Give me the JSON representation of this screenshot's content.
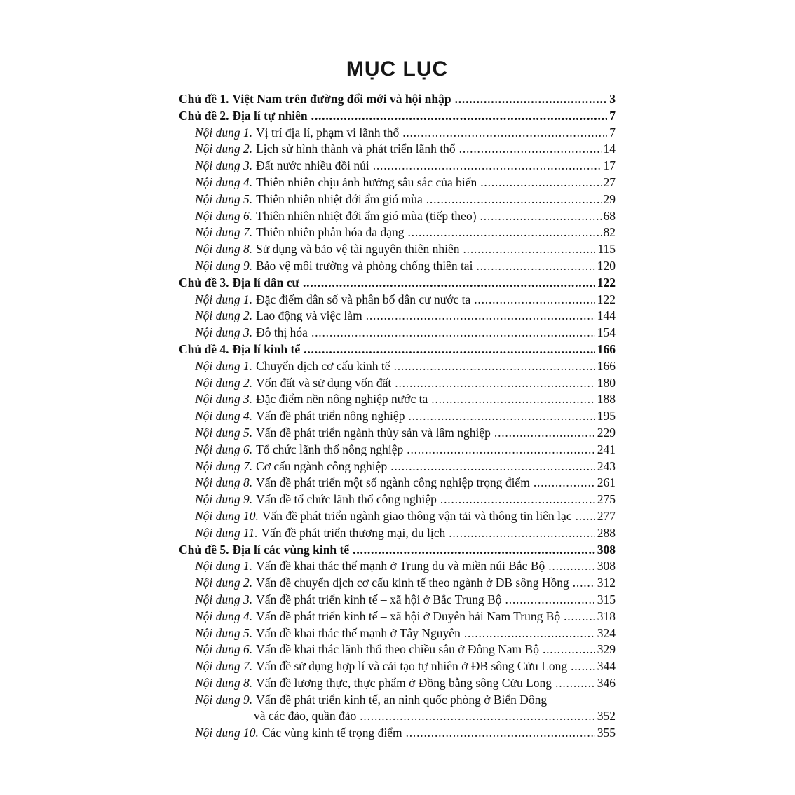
{
  "page": {
    "title": "MỤC LỤC"
  },
  "toc": {
    "entries": [
      {
        "level": "chapter",
        "prefix": "Chủ đề 1.",
        "title": "Việt Nam trên đường đổi mới và hội nhập",
        "page": "3"
      },
      {
        "level": "chapter",
        "prefix": "Chủ đề 2.",
        "title": "Địa lí tự nhiên",
        "page": "7"
      },
      {
        "level": "section",
        "prefix": "Nội dung 1.",
        "title": "Vị trí địa lí, phạm vi lãnh thổ",
        "page": "7"
      },
      {
        "level": "section",
        "prefix": "Nội dung 2.",
        "title": "Lịch sử hình thành và phát triển lãnh thổ",
        "page": "14"
      },
      {
        "level": "section",
        "prefix": "Nội dung 3.",
        "title": "Đất nước nhiều đồi núi",
        "page": "17"
      },
      {
        "level": "section",
        "prefix": "Nội dung 4.",
        "title": "Thiên nhiên chịu ảnh hưởng sâu sắc của biển",
        "page": "27"
      },
      {
        "level": "section",
        "prefix": "Nội dung 5.",
        "title": "Thiên nhiên nhiệt đới ẩm gió mùa",
        "page": "29"
      },
      {
        "level": "section",
        "prefix": "Nội dung 6.",
        "title": "Thiên nhiên nhiệt đới ẩm gió mùa (tiếp theo)",
        "page": "68"
      },
      {
        "level": "section",
        "prefix": "Nội dung 7.",
        "title": "Thiên nhiên phân hóa đa dạng",
        "page": "82"
      },
      {
        "level": "section",
        "prefix": "Nội dung 8.",
        "title": "Sử dụng và bảo vệ tài nguyên thiên nhiên",
        "page": "115"
      },
      {
        "level": "section",
        "prefix": "Nội dung 9.",
        "title": "Bảo vệ môi trường và phòng chống thiên tai",
        "page": "120"
      },
      {
        "level": "chapter",
        "prefix": "Chủ đề 3.",
        "title": "Địa lí dân cư",
        "page": "122"
      },
      {
        "level": "section",
        "prefix": "Nội dung 1.",
        "title": "Đặc điểm dân số và phân bố dân cư nước ta",
        "page": "122"
      },
      {
        "level": "section",
        "prefix": "Nội dung 2.",
        "title": "Lao động và việc làm",
        "page": "144"
      },
      {
        "level": "section",
        "prefix": "Nội dung 3.",
        "title": "Đô thị hóa",
        "page": "154"
      },
      {
        "level": "chapter",
        "prefix": "Chủ đề 4.",
        "title": "Địa lí kinh tế",
        "page": "166"
      },
      {
        "level": "section",
        "prefix": "Nội dung 1.",
        "title": "Chuyển dịch cơ cấu kinh tế",
        "page": "166"
      },
      {
        "level": "section",
        "prefix": "Nội dung 2.",
        "title": "Vốn đất và sử dụng vốn đất",
        "page": "180"
      },
      {
        "level": "section",
        "prefix": "Nội dung 3.",
        "title": "Đặc điểm nền nông nghiệp nước ta",
        "page": "188"
      },
      {
        "level": "section",
        "prefix": "Nội dung 4.",
        "title": "Vấn đề phát triển nông nghiệp",
        "page": "195"
      },
      {
        "level": "section",
        "prefix": "Nội dung 5.",
        "title": "Vấn đề phát triển ngành thủy sản và lâm nghiệp",
        "page": "229"
      },
      {
        "level": "section",
        "prefix": "Nội dung 6.",
        "title": "Tổ chức lãnh thổ nông nghiệp",
        "page": "241"
      },
      {
        "level": "section",
        "prefix": "Nội dung 7.",
        "title": "Cơ cấu ngành công nghiệp",
        "page": "243"
      },
      {
        "level": "section",
        "prefix": "Nội dung 8.",
        "title": "Vấn đề phát triển một số ngành công nghiệp trọng điểm",
        "page": "261"
      },
      {
        "level": "section",
        "prefix": "Nội dung 9.",
        "title": "Vấn đề tổ chức lãnh thổ công nghiệp",
        "page": "275"
      },
      {
        "level": "section",
        "prefix": "Nội dung 10.",
        "title": "Vấn đề phát triển ngành giao thông vận tải và thông tin liên lạc",
        "page": "277"
      },
      {
        "level": "section",
        "prefix": "Nội dung 11.",
        "title": "Vấn đề phát triển thương mại, du lịch",
        "page": "288"
      },
      {
        "level": "chapter",
        "prefix": "Chủ đề 5.",
        "title": "Địa lí các vùng kinh tế",
        "page": "308"
      },
      {
        "level": "section",
        "prefix": "Nội dung 1.",
        "title": "Vấn đề khai thác thế mạnh ở Trung du và miền núi Bắc Bộ",
        "page": "308"
      },
      {
        "level": "section",
        "prefix": "Nội dung 2.",
        "title": "Vấn đề chuyển dịch cơ cấu kinh tế theo ngành ở ĐB sông Hồng",
        "page": "312"
      },
      {
        "level": "section",
        "prefix": "Nội dung 3.",
        "title": "Vấn đề phát triển kinh tế – xã hội ở Bắc Trung Bộ",
        "page": "315"
      },
      {
        "level": "section",
        "prefix": "Nội dung 4.",
        "title": "Vấn đề phát triển kinh tế – xã hội ở Duyên hải Nam Trung Bộ",
        "page": "318"
      },
      {
        "level": "section",
        "prefix": "Nội dung 5.",
        "title": "Vấn đề khai thác thế mạnh ở Tây Nguyên",
        "page": "324"
      },
      {
        "level": "section",
        "prefix": "Nội dung 6.",
        "title": "Vấn đề khai thác lãnh thổ theo chiều sâu ở Đông Nam Bộ",
        "page": "329"
      },
      {
        "level": "section",
        "prefix": "Nội dung 7.",
        "title": "Vấn đề sử dụng hợp lí và cải tạo tự nhiên ở ĐB sông Cửu Long",
        "page": "344"
      },
      {
        "level": "section",
        "prefix": "Nội dung 8.",
        "title": "Vấn đề lương thực, thực phẩm ở Đồng bằng sông Cửu Long",
        "page": "346"
      },
      {
        "level": "section",
        "prefix": "Nội dung 9.",
        "title": "Vấn đề phát triển kinh tế, an ninh quốc phòng ở Biển Đông",
        "page": ""
      },
      {
        "level": "continuation",
        "prefix": "",
        "title": "và các đảo, quần đảo",
        "page": "352"
      },
      {
        "level": "section",
        "prefix": "Nội dung 10.",
        "title": "Các vùng kinh tế trọng điểm",
        "page": "355"
      }
    ]
  }
}
